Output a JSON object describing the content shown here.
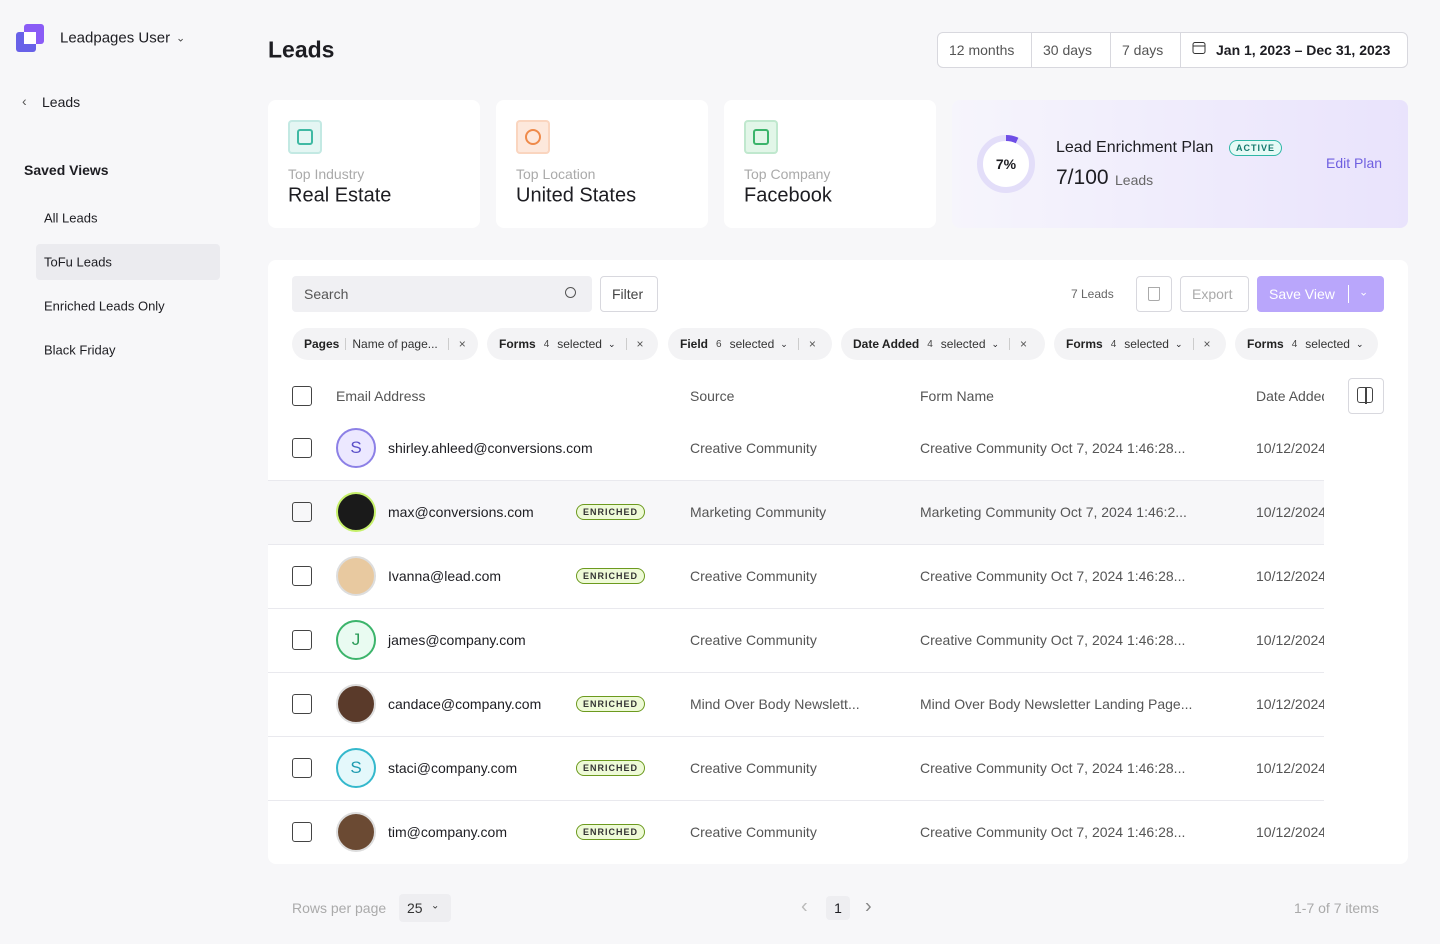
{
  "sidebar": {
    "user": "Leadpages User",
    "back": "Leads",
    "saved_views_title": "Saved Views",
    "views": [
      "All Leads",
      "ToFu Leads",
      "Enriched Leads Only",
      "Black Friday"
    ],
    "active_view": 1
  },
  "header": {
    "title": "Leads",
    "ranges": [
      "12 months",
      "30 days",
      "7 days"
    ],
    "date_range": "Jan 1, 2023 – Dec 31, 2023"
  },
  "stats": [
    {
      "label": "Top Industry",
      "value": "Real Estate"
    },
    {
      "label": "Top Location",
      "value": "United States"
    },
    {
      "label": "Top Company",
      "value": "Facebook"
    }
  ],
  "plan": {
    "percent": {
      "value": 7,
      "label": "7%"
    },
    "title": "Lead Enrichment Plan",
    "badge": "ACTIVE",
    "count": "7/100",
    "count_unit": "Leads",
    "action": "Edit Plan"
  },
  "toolbar": {
    "search": "Search",
    "filter": "Filter",
    "lead_count": "7 Leads",
    "export": "Export",
    "save": "Save View"
  },
  "chips": [
    {
      "name": "Pages",
      "value": "Name of page..."
    },
    {
      "name": "Forms",
      "count": 4,
      "value": "selected"
    },
    {
      "name": "Field",
      "count": 6,
      "value": "selected"
    },
    {
      "name": "Date Added",
      "count": 4,
      "value": "selected"
    },
    {
      "name": "Forms",
      "count": 4,
      "value": "selected"
    },
    {
      "name": "Forms",
      "count": 4,
      "value": "selected"
    }
  ],
  "table": {
    "columns": [
      "Email Address",
      "Source",
      "Form Name",
      "Date Added"
    ],
    "rows": [
      {
        "initial": "S",
        "email": "shirley.ahleed@conversions.com",
        "source": "Creative Community",
        "form": "Creative Community Oct 7, 2024 1:46:28...",
        "date": "10/12/2024"
      },
      {
        "email": "max@conversions.com",
        "tag": "ENRICHED",
        "source": "Marketing Community",
        "form": "Marketing Community Oct 7, 2024 1:46:2...",
        "date": "10/12/2024"
      },
      {
        "email": "Ivanna@lead.com",
        "tag": "ENRICHED",
        "source": "Creative Community",
        "form": "Creative Community Oct 7, 2024 1:46:28...",
        "date": "10/12/2024"
      },
      {
        "initial": "J",
        "email": "james@company.com",
        "source": "Creative Community",
        "form": "Creative Community Oct 7, 2024 1:46:28...",
        "date": "10/12/2024"
      },
      {
        "email": "candace@company.com",
        "tag": "ENRICHED",
        "source": "Mind Over Body Newslett...",
        "form": "Mind Over Body Newsletter Landing Page...",
        "date": "10/12/2024"
      },
      {
        "initial": "S",
        "email": "staci@company.com",
        "tag": "ENRICHED",
        "source": "Creative Community",
        "form": "Creative Community Oct 7, 2024 1:46:28...",
        "date": "10/12/2024"
      },
      {
        "email": "tim@company.com",
        "tag": "ENRICHED",
        "source": "Creative Community",
        "form": "Creative Community Oct 7, 2024 1:46:28...",
        "date": "10/12/2024"
      }
    ]
  },
  "footer": {
    "rows_label": "Rows per page",
    "rows_per_page": 25,
    "page": 1,
    "summary": "1-7 of 7 items"
  }
}
